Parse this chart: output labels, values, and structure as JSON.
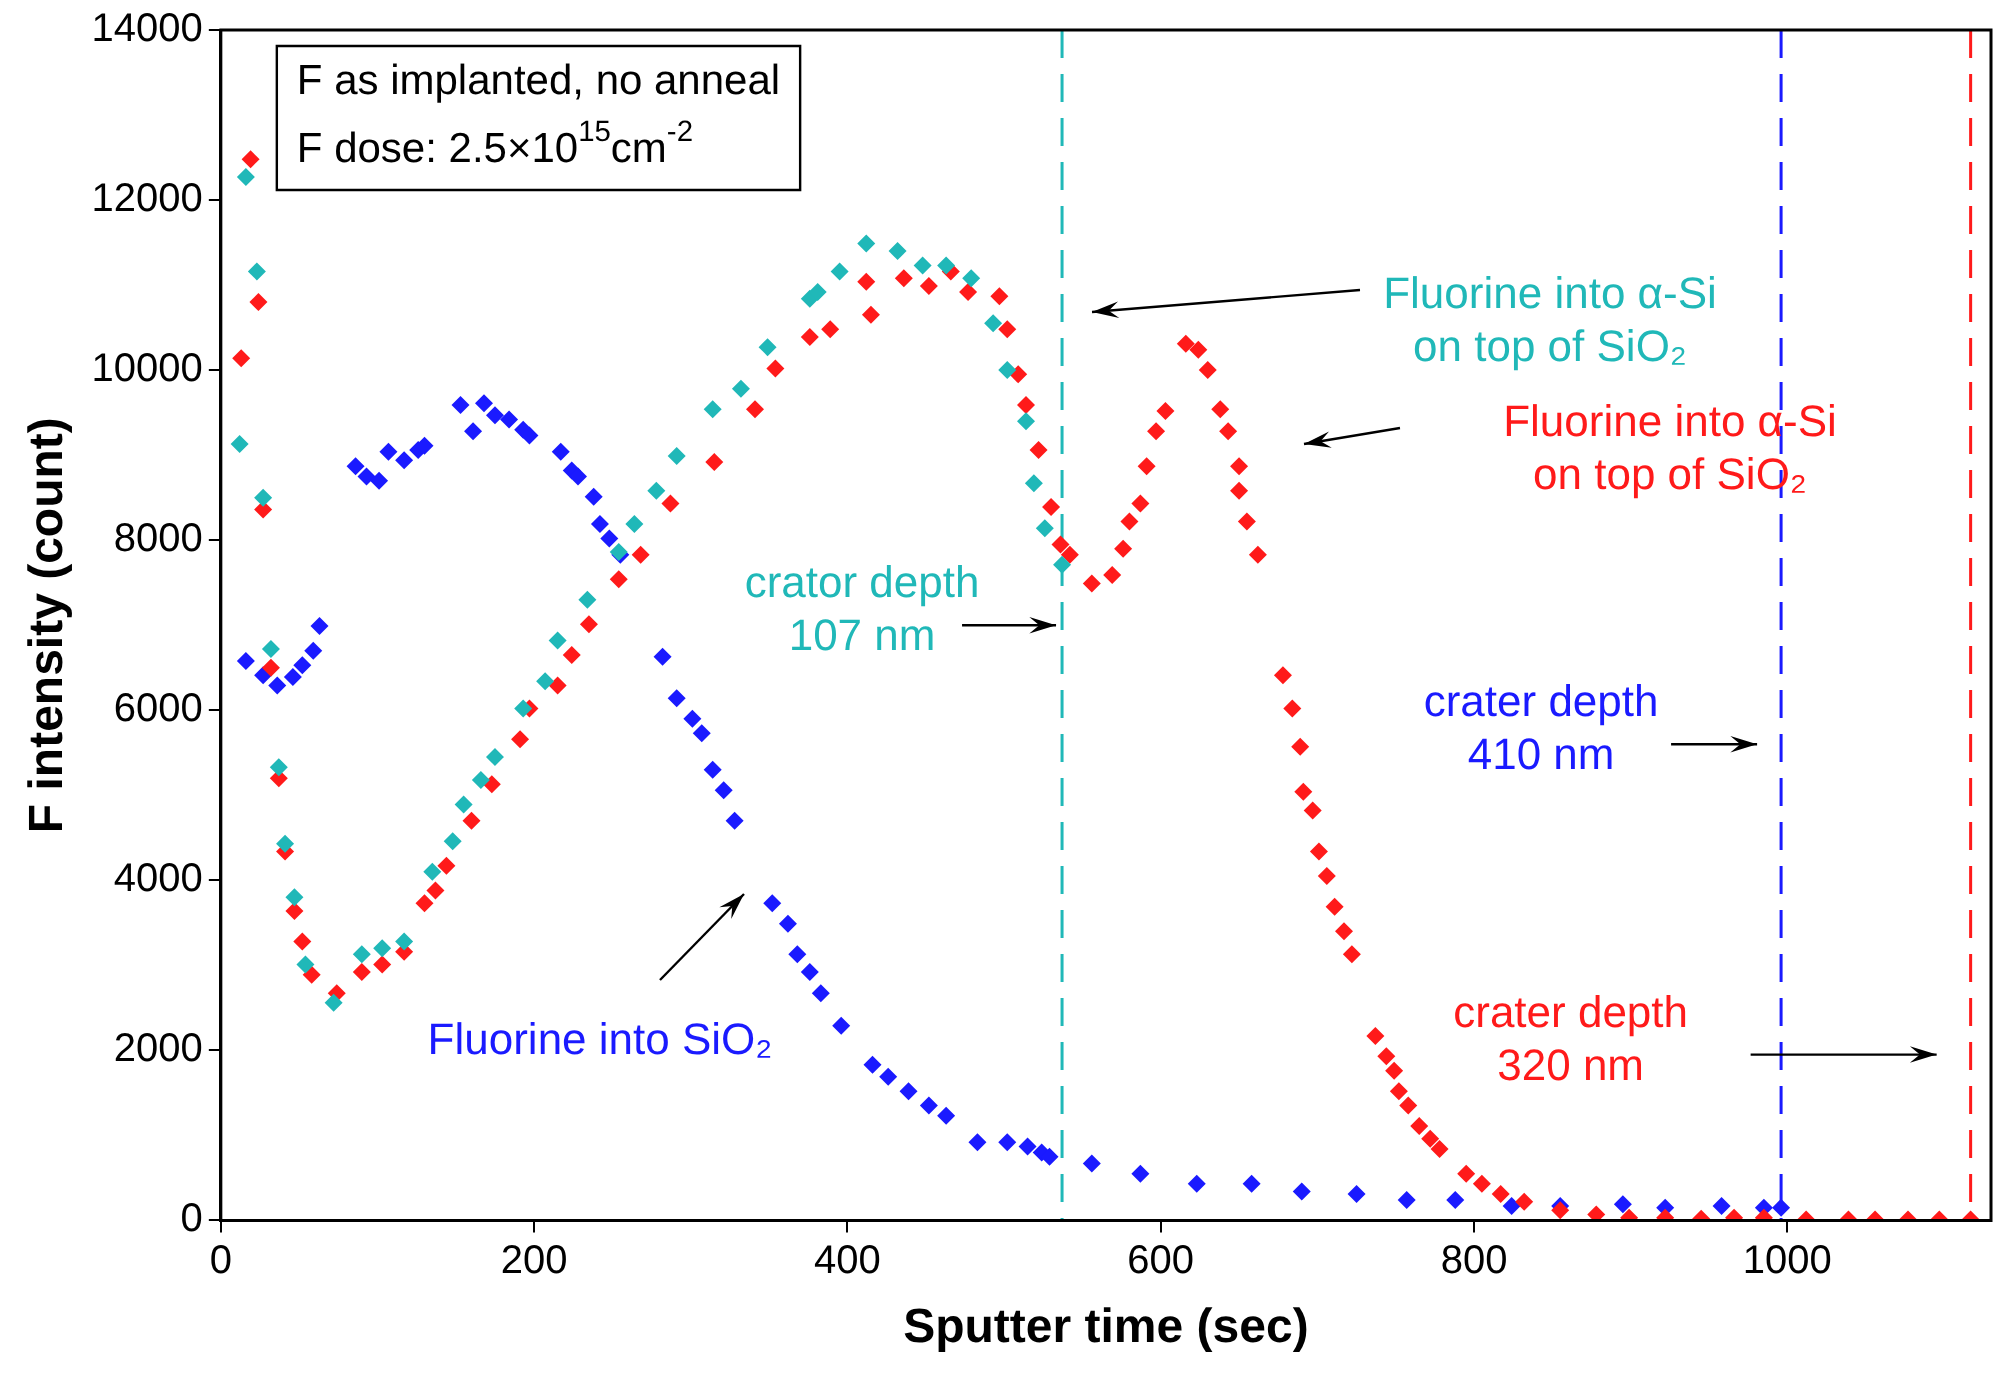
{
  "chart_data": {
    "type": "scatter",
    "xlabel": "Sputter time (sec)",
    "ylabel": "F intensity (count)",
    "xlim": [
      0,
      1130
    ],
    "ylim": [
      0,
      14000
    ],
    "xticks": [
      0,
      200,
      400,
      600,
      800,
      1000
    ],
    "yticks": [
      0,
      2000,
      4000,
      6000,
      8000,
      10000,
      12000,
      14000
    ],
    "grid": false,
    "legend": false,
    "marker": "diamond",
    "annotations": [
      "F as implanted, no anneal",
      "F dose: 2.5×10$^{15}$cm$^{-2}$"
    ],
    "ref_lines": [
      {
        "axis": "x",
        "value": 537,
        "label": "crator depth\n107 nm",
        "color": "#20b8b8",
        "line_style": "dashed"
      },
      {
        "axis": "x",
        "value": 996,
        "label": "crater depth\n410 nm",
        "color": "#1a1aff",
        "line_style": "dashed"
      },
      {
        "axis": "x",
        "value": 1117,
        "label": "crater depth\n320 nm",
        "color": "#ff1a1a",
        "line_style": "dashed"
      }
    ],
    "series": [
      {
        "name": "Fluorine into α-Si\non top of SiO₂",
        "color": "#20b8b8",
        "x": [
          12,
          16,
          23,
          27,
          32,
          37,
          41,
          47,
          54,
          72,
          90,
          103,
          117,
          135,
          148,
          155,
          166,
          175,
          193,
          207,
          215,
          234,
          254,
          264,
          278,
          291,
          314,
          332,
          349,
          376,
          381,
          395,
          412,
          432,
          448,
          463,
          479,
          493,
          502,
          514,
          519,
          526,
          537
        ],
        "values": [
          9130,
          12270,
          11160,
          8500,
          6720,
          5330,
          4430,
          3800,
          3010,
          2560,
          3130,
          3200,
          3280,
          4100,
          4460,
          4890,
          5180,
          5450,
          6020,
          6340,
          6820,
          7300,
          7860,
          8190,
          8580,
          8990,
          9540,
          9780,
          10270,
          10840,
          10920,
          11160,
          11490,
          11400,
          11230,
          11230,
          11080,
          10550,
          10000,
          9400,
          8670,
          8140,
          7710
        ]
      },
      {
        "name": "Fluorine into α-Si\non top of SiO₂",
        "color": "#ff1a1a",
        "x": [
          13,
          19,
          24,
          27,
          32,
          37,
          41,
          47,
          52,
          58,
          74,
          90,
          103,
          117,
          130,
          137,
          144,
          160,
          173,
          191,
          197,
          215,
          224,
          235,
          254,
          268,
          287,
          315,
          341,
          354,
          376,
          389,
          412,
          415,
          436,
          452,
          466,
          477,
          497,
          502,
          509,
          514,
          522,
          530,
          536,
          542,
          556,
          569,
          576,
          580,
          587,
          591,
          597,
          603,
          616,
          624,
          630,
          638,
          643,
          650,
          650,
          655,
          662,
          678,
          684,
          689,
          691,
          697,
          701,
          706,
          711,
          717,
          722,
          737,
          744,
          749,
          752,
          758,
          765,
          772,
          778,
          795,
          805,
          817,
          832,
          855,
          878,
          899,
          922,
          945,
          966,
          985,
          1012,
          1039,
          1056,
          1077,
          1097,
          1117
        ],
        "values": [
          10140,
          12480,
          10800,
          8360,
          6500,
          5200,
          4340,
          3640,
          3280,
          2890,
          2670,
          2920,
          3010,
          3160,
          3730,
          3880,
          4170,
          4700,
          5130,
          5660,
          6020,
          6290,
          6650,
          7010,
          7540,
          7830,
          8430,
          8920,
          9540,
          10020,
          10390,
          10480,
          11040,
          10650,
          11080,
          10990,
          11160,
          10920,
          10870,
          10480,
          9950,
          9590,
          9060,
          8390,
          7950,
          7830,
          7490,
          7590,
          7900,
          8220,
          8430,
          8870,
          9280,
          9520,
          10310,
          10240,
          10000,
          9540,
          9280,
          8870,
          8580,
          8220,
          7830,
          6410,
          6020,
          5570,
          5040,
          4820,
          4340,
          4050,
          3690,
          3400,
          3130,
          2170,
          1930,
          1760,
          1520,
          1350,
          1110,
          960,
          840,
          550,
          430,
          310,
          220,
          120,
          70,
          30,
          30,
          20,
          30,
          30,
          10,
          10,
          10,
          10,
          10,
          10
        ]
      },
      {
        "name": "Fluorine into SiO₂",
        "color": "#1a1aff",
        "x": [
          16,
          27,
          36,
          46,
          52,
          59,
          63,
          86,
          93,
          101,
          107,
          117,
          126,
          130,
          153,
          161,
          168,
          175,
          184,
          193,
          197,
          217,
          224,
          228,
          238,
          242,
          248,
          255,
          282,
          291,
          301,
          307,
          314,
          321,
          328,
          352,
          362,
          368,
          376,
          383,
          396,
          416,
          426,
          439,
          452,
          463,
          483,
          502,
          515,
          524,
          529,
          556,
          587,
          623,
          658,
          690,
          725,
          757,
          788,
          824,
          855,
          895,
          922,
          958,
          985,
          996
        ],
        "values": [
          6580,
          6410,
          6290,
          6390,
          6530,
          6700,
          6990,
          8870,
          8750,
          8700,
          9040,
          8940,
          9060,
          9110,
          9590,
          9280,
          9610,
          9470,
          9420,
          9300,
          9230,
          9040,
          8820,
          8750,
          8510,
          8190,
          8020,
          7830,
          6630,
          6140,
          5900,
          5730,
          5300,
          5060,
          4700,
          3730,
          3490,
          3130,
          2920,
          2670,
          2290,
          1830,
          1690,
          1520,
          1350,
          1230,
          920,
          920,
          870,
          800,
          750,
          670,
          550,
          430,
          430,
          340,
          310,
          240,
          240,
          170,
          170,
          190,
          150,
          170,
          150,
          150
        ]
      }
    ]
  }
}
